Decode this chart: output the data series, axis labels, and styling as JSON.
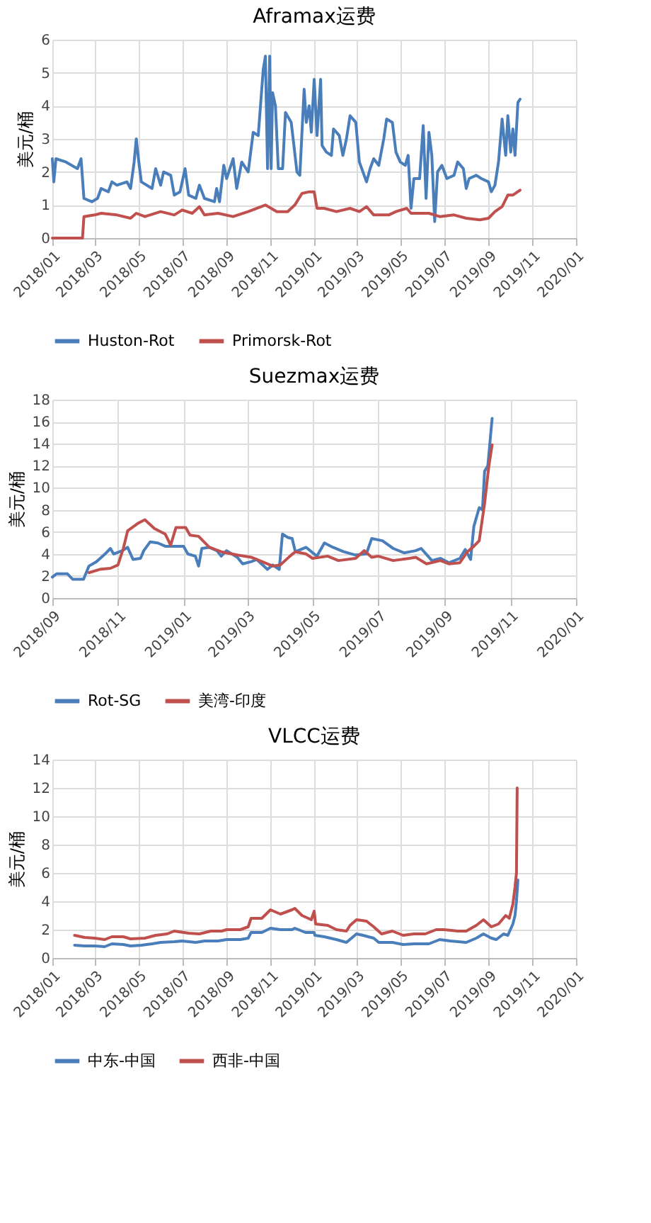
{
  "chart_data": [
    {
      "type": "line",
      "title": "Aframax运费",
      "ylabel": "美元/桶",
      "legend": "bottom",
      "grid": true,
      "line_style": "solid",
      "marker": "none",
      "xlim": [
        "2018-01-01",
        "2020-01-01"
      ],
      "xticks": [
        {
          "value": "2018-01-01",
          "label": "2018/01"
        },
        {
          "value": "2018-03-01",
          "label": "2018/03"
        },
        {
          "value": "2018-05-01",
          "label": "2018/05"
        },
        {
          "value": "2018-07-01",
          "label": "2018/07"
        },
        {
          "value": "2018-09-01",
          "label": "2018/09"
        },
        {
          "value": "2018-11-01",
          "label": "2018/11"
        },
        {
          "value": "2019-01-01",
          "label": "2019/01"
        },
        {
          "value": "2019-03-01",
          "label": "2019/03"
        },
        {
          "value": "2019-05-01",
          "label": "2019/05"
        },
        {
          "value": "2019-07-01",
          "label": "2019/07"
        },
        {
          "value": "2019-09-01",
          "label": "2019/09"
        },
        {
          "value": "2019-11-01",
          "label": "2019/11"
        },
        {
          "value": "2020-01-01",
          "label": "2020/01"
        }
      ],
      "ylim": [
        0,
        6
      ],
      "yticks": [
        0,
        1,
        2,
        3,
        4,
        5,
        6
      ],
      "series": [
        {
          "name": "Huston-Rot",
          "color": "#4a7ebb",
          "x": [
            "2018-01-01",
            "2018-01-03",
            "2018-01-06",
            "2018-01-20",
            "2018-02-05",
            "2018-02-10",
            "2018-02-14",
            "2018-02-25",
            "2018-03-05",
            "2018-03-10",
            "2018-03-20",
            "2018-03-25",
            "2018-04-01",
            "2018-04-15",
            "2018-04-20",
            "2018-04-25",
            "2018-04-28",
            "2018-05-01",
            "2018-05-05",
            "2018-05-20",
            "2018-05-25",
            "2018-06-01",
            "2018-06-05",
            "2018-06-15",
            "2018-06-20",
            "2018-06-28",
            "2018-07-05",
            "2018-07-10",
            "2018-07-20",
            "2018-07-25",
            "2018-08-01",
            "2018-08-15",
            "2018-08-18",
            "2018-08-22",
            "2018-08-28",
            "2018-09-01",
            "2018-09-10",
            "2018-09-15",
            "2018-09-22",
            "2018-10-01",
            "2018-10-08",
            "2018-10-15",
            "2018-10-22",
            "2018-10-25",
            "2018-10-28",
            "2018-10-31",
            "2018-11-02",
            "2018-11-04",
            "2018-11-08",
            "2018-11-12",
            "2018-11-18",
            "2018-11-22",
            "2018-11-30",
            "2018-12-08",
            "2018-12-12",
            "2018-12-18",
            "2018-12-21",
            "2018-12-25",
            "2018-12-28",
            "2019-01-01",
            "2019-01-05",
            "2019-01-10",
            "2019-01-12",
            "2019-01-18",
            "2019-01-25",
            "2019-01-28",
            "2019-02-05",
            "2019-02-10",
            "2019-02-15",
            "2019-02-20",
            "2019-02-28",
            "2019-03-05",
            "2019-03-15",
            "2019-03-20",
            "2019-03-25",
            "2019-04-01",
            "2019-04-08",
            "2019-04-12",
            "2019-04-20",
            "2019-04-25",
            "2019-05-01",
            "2019-05-08",
            "2019-05-12",
            "2019-05-16",
            "2019-05-20",
            "2019-05-28",
            "2019-06-02",
            "2019-06-06",
            "2019-06-10",
            "2019-06-14",
            "2019-06-18",
            "2019-06-22",
            "2019-06-28",
            "2019-07-05",
            "2019-07-15",
            "2019-07-20",
            "2019-07-28",
            "2019-08-01",
            "2019-08-05",
            "2019-08-15",
            "2019-08-22",
            "2019-09-01",
            "2019-09-05",
            "2019-09-10",
            "2019-09-15",
            "2019-09-20",
            "2019-09-25",
            "2019-09-28",
            "2019-10-02",
            "2019-10-05",
            "2019-10-08",
            "2019-10-12",
            "2019-10-15"
          ],
          "values": [
            2.4,
            1.7,
            2.4,
            2.3,
            2.1,
            2.4,
            1.2,
            1.1,
            1.2,
            1.5,
            1.4,
            1.7,
            1.6,
            1.7,
            1.5,
            2.3,
            3.0,
            2.4,
            1.7,
            1.5,
            2.1,
            1.6,
            2.0,
            1.9,
            1.3,
            1.4,
            2.1,
            1.3,
            1.2,
            1.6,
            1.2,
            1.1,
            1.5,
            1.1,
            2.2,
            1.8,
            2.4,
            1.5,
            2.3,
            2.0,
            3.2,
            3.1,
            5.1,
            5.5,
            2.1,
            5.5,
            2.1,
            4.4,
            4.0,
            2.1,
            2.1,
            3.8,
            3.5,
            2.0,
            1.9,
            4.5,
            3.5,
            4.0,
            3.2,
            4.8,
            3.1,
            4.8,
            2.8,
            2.6,
            2.5,
            3.3,
            3.1,
            2.5,
            3.0,
            3.7,
            3.5,
            2.3,
            1.7,
            2.1,
            2.4,
            2.2,
            3.0,
            3.6,
            3.5,
            2.6,
            2.3,
            2.2,
            2.5,
            0.9,
            1.8,
            1.8,
            3.4,
            1.2,
            3.2,
            2.5,
            0.5,
            2.0,
            2.2,
            1.8,
            1.9,
            2.3,
            2.1,
            1.5,
            1.8,
            1.9,
            1.8,
            1.7,
            1.4,
            1.6,
            2.3,
            3.6,
            2.5,
            3.7,
            2.6,
            3.3,
            2.5,
            4.1,
            4.2
          ]
        },
        {
          "name": "Primorsk-Rot",
          "color": "#c0504d",
          "x": [
            "2018-01-01",
            "2018-02-12",
            "2018-02-14",
            "2018-03-01",
            "2018-03-10",
            "2018-04-01",
            "2018-04-20",
            "2018-04-28",
            "2018-05-10",
            "2018-06-01",
            "2018-06-20",
            "2018-07-01",
            "2018-07-15",
            "2018-07-25",
            "2018-08-01",
            "2018-08-20",
            "2018-09-10",
            "2018-10-01",
            "2018-10-25",
            "2018-11-10",
            "2018-11-25",
            "2018-12-05",
            "2018-12-15",
            "2018-12-25",
            "2019-01-01",
            "2019-01-05",
            "2019-01-15",
            "2019-02-01",
            "2019-02-20",
            "2019-03-05",
            "2019-03-15",
            "2019-03-25",
            "2019-04-15",
            "2019-04-25",
            "2019-05-10",
            "2019-05-16",
            "2019-06-10",
            "2019-06-25",
            "2019-07-15",
            "2019-08-01",
            "2019-08-20",
            "2019-09-01",
            "2019-09-10",
            "2019-09-20",
            "2019-09-28",
            "2019-10-05",
            "2019-10-15"
          ],
          "values": [
            0,
            0,
            0.65,
            0.7,
            0.75,
            0.7,
            0.6,
            0.75,
            0.65,
            0.8,
            0.7,
            0.85,
            0.75,
            0.95,
            0.7,
            0.75,
            0.65,
            0.8,
            1.0,
            0.8,
            0.8,
            1.0,
            1.35,
            1.4,
            1.4,
            0.9,
            0.9,
            0.8,
            0.9,
            0.8,
            0.95,
            0.7,
            0.7,
            0.8,
            0.9,
            0.75,
            0.75,
            0.65,
            0.7,
            0.6,
            0.55,
            0.6,
            0.8,
            0.95,
            1.3,
            1.3,
            1.45
          ]
        }
      ]
    },
    {
      "type": "line",
      "title": "Suezmax运费",
      "ylabel": "美元/桶",
      "legend": "bottom",
      "grid": true,
      "line_style": "solid",
      "marker": "none",
      "xlim": [
        "2018-09-01",
        "2020-01-01"
      ],
      "xticks": [
        {
          "value": "2018-09-01",
          "label": "2018/09"
        },
        {
          "value": "2018-11-01",
          "label": "2018/11"
        },
        {
          "value": "2019-01-01",
          "label": "2019/01"
        },
        {
          "value": "2019-03-01",
          "label": "2019/03"
        },
        {
          "value": "2019-05-01",
          "label": "2019/05"
        },
        {
          "value": "2019-07-01",
          "label": "2019/07"
        },
        {
          "value": "2019-09-01",
          "label": "2019/09"
        },
        {
          "value": "2019-11-01",
          "label": "2019/11"
        },
        {
          "value": "2020-01-01",
          "label": "2020/01"
        }
      ],
      "ylim": [
        0,
        18
      ],
      "yticks": [
        0,
        2,
        4,
        6,
        8,
        10,
        12,
        14,
        16,
        18
      ],
      "series": [
        {
          "name": "Rot-SG",
          "color": "#4a7ebb",
          "x": [
            "2018-09-01",
            "2018-09-05",
            "2018-09-15",
            "2018-09-20",
            "2018-09-30",
            "2018-10-05",
            "2018-10-12",
            "2018-10-20",
            "2018-10-25",
            "2018-10-28",
            "2018-11-05",
            "2018-11-10",
            "2018-11-15",
            "2018-11-22",
            "2018-11-25",
            "2018-12-01",
            "2018-12-08",
            "2018-12-15",
            "2018-12-25",
            "2019-01-01",
            "2019-01-05",
            "2019-01-12",
            "2019-01-15",
            "2019-01-18",
            "2019-01-25",
            "2019-02-01",
            "2019-02-05",
            "2019-02-10",
            "2019-02-20",
            "2019-02-25",
            "2019-03-05",
            "2019-03-10",
            "2019-03-20",
            "2019-03-25",
            "2019-03-31",
            "2019-04-03",
            "2019-04-08",
            "2019-04-12",
            "2019-04-15",
            "2019-04-25",
            "2019-05-05",
            "2019-05-12",
            "2019-05-20",
            "2019-05-30",
            "2019-06-10",
            "2019-06-20",
            "2019-06-25",
            "2019-07-05",
            "2019-07-15",
            "2019-07-25",
            "2019-08-05",
            "2019-08-10",
            "2019-08-20",
            "2019-08-28",
            "2019-09-05",
            "2019-09-15",
            "2019-09-20",
            "2019-09-25",
            "2019-09-28",
            "2019-10-03",
            "2019-10-06",
            "2019-10-08",
            "2019-10-11",
            "2019-10-15"
          ],
          "values": [
            1.9,
            2.2,
            2.2,
            1.7,
            1.7,
            2.9,
            3.3,
            4.0,
            4.5,
            4.0,
            4.3,
            4.6,
            3.5,
            3.6,
            4.3,
            5.1,
            5.0,
            4.7,
            4.7,
            4.7,
            4.0,
            3.8,
            2.9,
            4.5,
            4.6,
            4.3,
            3.8,
            4.3,
            3.7,
            3.1,
            3.3,
            3.5,
            2.6,
            3.0,
            2.6,
            5.8,
            5.5,
            5.4,
            4.2,
            4.6,
            3.8,
            5.0,
            4.6,
            4.2,
            3.9,
            4.0,
            5.4,
            5.2,
            4.5,
            4.1,
            4.3,
            4.5,
            3.4,
            3.6,
            3.2,
            3.6,
            4.4,
            3.5,
            6.5,
            8.2,
            8.0,
            11.5,
            12.0,
            16.3
          ]
        },
        {
          "name": "美湾-印度",
          "color": "#c0504d",
          "x": [
            "2018-10-05",
            "2018-10-15",
            "2018-10-25",
            "2018-11-01",
            "2018-11-06",
            "2018-11-10",
            "2018-11-20",
            "2018-11-26",
            "2018-12-05",
            "2018-12-15",
            "2018-12-20",
            "2018-12-25",
            "2019-01-03",
            "2019-01-07",
            "2019-01-15",
            "2019-01-25",
            "2019-02-05",
            "2019-02-20",
            "2019-03-05",
            "2019-03-15",
            "2019-03-25",
            "2019-04-01",
            "2019-04-10",
            "2019-04-15",
            "2019-04-25",
            "2019-05-01",
            "2019-05-15",
            "2019-05-25",
            "2019-06-10",
            "2019-06-18",
            "2019-06-25",
            "2019-07-01",
            "2019-07-15",
            "2019-07-30",
            "2019-08-05",
            "2019-08-15",
            "2019-08-28",
            "2019-09-05",
            "2019-09-15",
            "2019-09-22",
            "2019-09-28",
            "2019-10-03",
            "2019-10-08",
            "2019-10-12",
            "2019-10-15"
          ],
          "values": [
            2.3,
            2.6,
            2.7,
            3.0,
            4.5,
            6.1,
            6.8,
            7.1,
            6.3,
            5.8,
            4.8,
            6.4,
            6.4,
            5.7,
            5.6,
            4.6,
            4.2,
            3.9,
            3.7,
            3.3,
            2.9,
            3.0,
            3.8,
            4.2,
            4.0,
            3.6,
            3.8,
            3.4,
            3.6,
            4.3,
            3.7,
            3.8,
            3.4,
            3.6,
            3.7,
            3.1,
            3.4,
            3.1,
            3.2,
            4.2,
            4.7,
            5.2,
            8.6,
            12.0,
            13.9
          ]
        }
      ]
    },
    {
      "type": "line",
      "title": "VLCC运费",
      "ylabel": "美元/桶",
      "legend": "bottom",
      "grid": true,
      "line_style": "solid",
      "marker": "none",
      "xlim": [
        "2018-01-01",
        "2020-01-01"
      ],
      "xticks": [
        {
          "value": "2018-01-01",
          "label": "2018/01"
        },
        {
          "value": "2018-03-01",
          "label": "2018/03"
        },
        {
          "value": "2018-05-01",
          "label": "2018/05"
        },
        {
          "value": "2018-07-01",
          "label": "2018/07"
        },
        {
          "value": "2018-09-01",
          "label": "2018/09"
        },
        {
          "value": "2018-11-01",
          "label": "2018/11"
        },
        {
          "value": "2019-01-01",
          "label": "2019/01"
        },
        {
          "value": "2019-03-01",
          "label": "2019/03"
        },
        {
          "value": "2019-05-01",
          "label": "2019/05"
        },
        {
          "value": "2019-07-01",
          "label": "2019/07"
        },
        {
          "value": "2019-09-01",
          "label": "2019/09"
        },
        {
          "value": "2019-11-01",
          "label": "2019/11"
        },
        {
          "value": "2020-01-01",
          "label": "2020/01"
        }
      ],
      "ylim": [
        0,
        14
      ],
      "yticks": [
        0,
        2,
        4,
        6,
        8,
        10,
        12,
        14
      ],
      "series": [
        {
          "name": "中东-中国",
          "color": "#4a7ebb",
          "x": [
            "2018-02-01",
            "2018-02-15",
            "2018-03-01",
            "2018-03-15",
            "2018-03-25",
            "2018-04-10",
            "2018-04-20",
            "2018-05-05",
            "2018-05-20",
            "2018-06-01",
            "2018-06-20",
            "2018-07-01",
            "2018-07-20",
            "2018-08-01",
            "2018-08-20",
            "2018-09-01",
            "2018-09-20",
            "2018-10-01",
            "2018-10-05",
            "2018-10-20",
            "2018-11-01",
            "2018-11-15",
            "2018-12-01",
            "2018-12-05",
            "2018-12-20",
            "2019-01-01",
            "2019-01-02",
            "2019-01-15",
            "2019-02-01",
            "2019-02-15",
            "2019-03-01",
            "2019-03-10",
            "2019-03-25",
            "2019-04-01",
            "2019-04-20",
            "2019-05-05",
            "2019-05-20",
            "2019-06-10",
            "2019-06-25",
            "2019-07-10",
            "2019-08-01",
            "2019-08-15",
            "2019-08-25",
            "2019-09-05",
            "2019-09-12",
            "2019-09-22",
            "2019-09-28",
            "2019-10-05",
            "2019-10-08",
            "2019-10-10",
            "2019-10-12"
          ],
          "values": [
            0.9,
            0.85,
            0.85,
            0.8,
            1.0,
            0.95,
            0.85,
            0.9,
            1.0,
            1.1,
            1.15,
            1.2,
            1.1,
            1.2,
            1.2,
            1.3,
            1.3,
            1.4,
            1.8,
            1.8,
            2.1,
            2.0,
            2.0,
            2.1,
            1.8,
            1.8,
            1.6,
            1.5,
            1.3,
            1.1,
            1.7,
            1.6,
            1.4,
            1.1,
            1.1,
            0.95,
            1.0,
            1.0,
            1.3,
            1.2,
            1.1,
            1.4,
            1.7,
            1.4,
            1.3,
            1.7,
            1.6,
            2.4,
            3.0,
            4.0,
            5.5
          ]
        },
        {
          "name": "西非-中国",
          "color": "#c0504d",
          "x": [
            "2018-02-01",
            "2018-02-15",
            "2018-03-01",
            "2018-03-15",
            "2018-03-25",
            "2018-04-10",
            "2018-04-20",
            "2018-05-10",
            "2018-05-25",
            "2018-06-10",
            "2018-06-20",
            "2018-07-10",
            "2018-07-25",
            "2018-08-10",
            "2018-08-25",
            "2018-09-01",
            "2018-09-20",
            "2018-10-01",
            "2018-10-05",
            "2018-10-20",
            "2018-11-01",
            "2018-11-15",
            "2018-12-01",
            "2018-12-05",
            "2018-12-15",
            "2018-12-28",
            "2019-01-01",
            "2019-01-03",
            "2019-01-20",
            "2019-02-01",
            "2019-02-15",
            "2019-02-20",
            "2019-03-01",
            "2019-03-15",
            "2019-03-25",
            "2019-04-05",
            "2019-04-20",
            "2019-05-05",
            "2019-05-20",
            "2019-06-05",
            "2019-06-20",
            "2019-07-01",
            "2019-07-20",
            "2019-08-01",
            "2019-08-15",
            "2019-08-25",
            "2019-09-05",
            "2019-09-15",
            "2019-09-25",
            "2019-09-30",
            "2019-10-05",
            "2019-10-08",
            "2019-10-10",
            "2019-10-11"
          ],
          "values": [
            1.6,
            1.45,
            1.4,
            1.3,
            1.5,
            1.5,
            1.35,
            1.4,
            1.6,
            1.7,
            1.9,
            1.75,
            1.7,
            1.9,
            1.9,
            2.0,
            2.0,
            2.2,
            2.8,
            2.8,
            3.4,
            3.1,
            3.4,
            3.5,
            3.0,
            2.7,
            3.3,
            2.4,
            2.3,
            2.0,
            1.9,
            2.3,
            2.7,
            2.6,
            2.2,
            1.7,
            1.9,
            1.6,
            1.7,
            1.7,
            2.0,
            2.0,
            1.9,
            1.9,
            2.3,
            2.7,
            2.2,
            2.4,
            3.0,
            2.8,
            3.8,
            5.0,
            6.0,
            12.0
          ]
        }
      ]
    }
  ]
}
